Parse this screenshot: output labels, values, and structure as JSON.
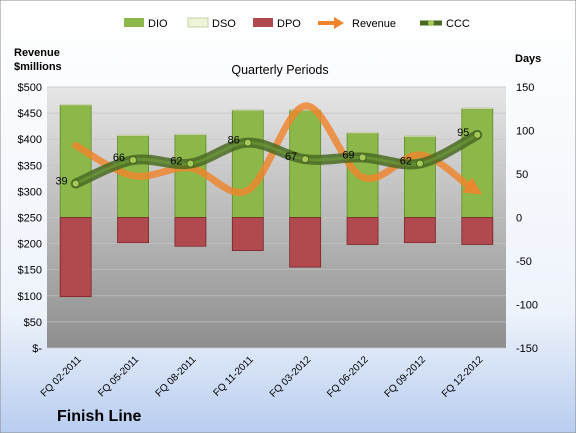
{
  "company": "Finish Line",
  "colors": {
    "dio": "#8cb84a",
    "dio_edge": "#5f8a26",
    "dso": "#eef4d8",
    "dpo": "#b04a4f",
    "dpo_edge": "#7a2428",
    "revenue": "#f0842c",
    "ccc_outer": "#4a6a22",
    "ccc_inner": "#6b9a38",
    "ccc_marker": "#a6c95a"
  },
  "chart_data": {
    "type": "bar",
    "title": "Quarterly Periods",
    "left_axis": {
      "label_line1": "Revenue",
      "label_line2": "$millions",
      "min": 0,
      "max": 500,
      "step": 50,
      "ticks": [
        "$-",
        "$50",
        "$100",
        "$150",
        "$200",
        "$250",
        "$300",
        "$350",
        "$400",
        "$450",
        "$500"
      ]
    },
    "right_axis": {
      "label": "Days",
      "min": -150,
      "max": 150,
      "step": 50,
      "ticks": [
        "-150",
        "-100",
        "-50",
        "0",
        "50",
        "100",
        "150"
      ]
    },
    "categories": [
      "FQ 02-2011",
      "FQ 05-2011",
      "FQ 08-2011",
      "FQ 11-2011",
      "FQ 03-2012",
      "FQ 06-2012",
      "FQ 09-2012",
      "FQ 12-2012"
    ],
    "legend": [
      "DIO",
      "DSO",
      "DPO",
      "Revenue",
      "CCC"
    ],
    "series": [
      {
        "name": "DIO",
        "axis": "right",
        "values": [
          129,
          94,
          95,
          123,
          123,
          97,
          93,
          125
        ]
      },
      {
        "name": "DSO",
        "axis": "right",
        "values": [
          1,
          1,
          1,
          1,
          1,
          1,
          1,
          1
        ]
      },
      {
        "name": "DPO",
        "axis": "right",
        "values": [
          -91,
          -29,
          -33,
          -38,
          -57,
          -31,
          -29,
          -31
        ]
      },
      {
        "name": "Revenue",
        "axis": "left",
        "values": [
          388,
          330,
          345,
          302,
          464,
          327,
          370,
          300
        ]
      },
      {
        "name": "CCC",
        "axis": "right",
        "values": [
          39,
          66,
          62,
          86,
          67,
          69,
          62,
          95
        ]
      }
    ],
    "ccc_labels": [
      "39",
      "66",
      "62",
      "86",
      "67",
      "69",
      "62",
      "95"
    ],
    "grid": true,
    "legend_position": "top"
  }
}
